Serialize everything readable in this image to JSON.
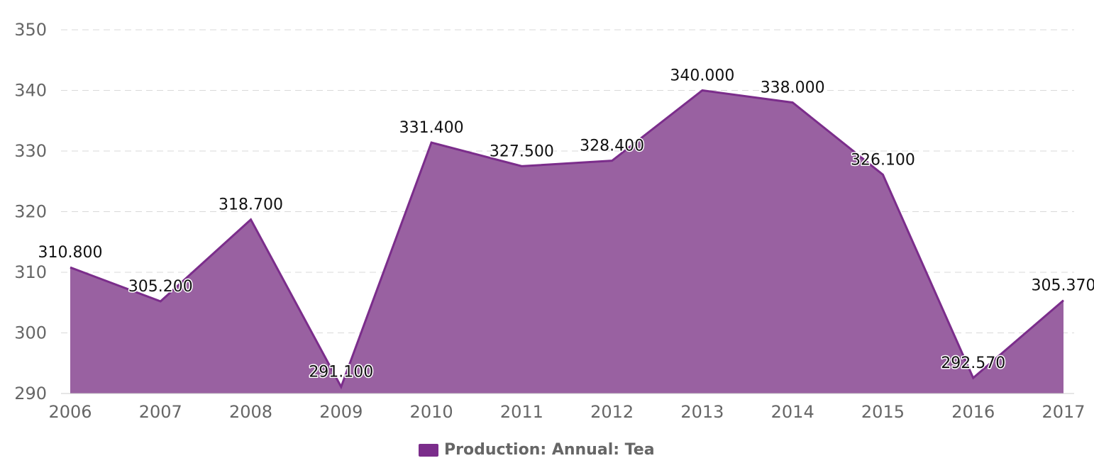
{
  "chart_data": {
    "type": "area",
    "title": "",
    "xlabel": "",
    "ylabel": "",
    "categories": [
      "2006",
      "2007",
      "2008",
      "2009",
      "2010",
      "2011",
      "2012",
      "2013",
      "2014",
      "2015",
      "2016",
      "2017"
    ],
    "series": [
      {
        "name": "Production: Annual: Tea",
        "values": [
          310.8,
          305.2,
          318.7,
          291.1,
          331.4,
          327.5,
          328.4,
          340.0,
          338.0,
          326.1,
          292.57,
          305.37
        ],
        "labels": [
          "310.800",
          "305.200",
          "318.700",
          "291.100",
          "331.400",
          "327.500",
          "328.400",
          "340.000",
          "338.000",
          "326.100",
          "292.570",
          "305.370"
        ]
      }
    ],
    "y_ticks": [
      "290",
      "300",
      "310",
      "320",
      "330",
      "340",
      "350"
    ],
    "ylim": [
      290,
      350
    ],
    "grid": true,
    "legend_position": "bottom-center",
    "colors": {
      "fill": "#9961a1",
      "line": "#7b2d8b",
      "legend_swatch": "#7b2d8b",
      "grid": "#d9d9d9",
      "tick_text": "#666666",
      "label_text": "#111111"
    }
  },
  "legend": {
    "label": "Production: Annual: Tea"
  }
}
